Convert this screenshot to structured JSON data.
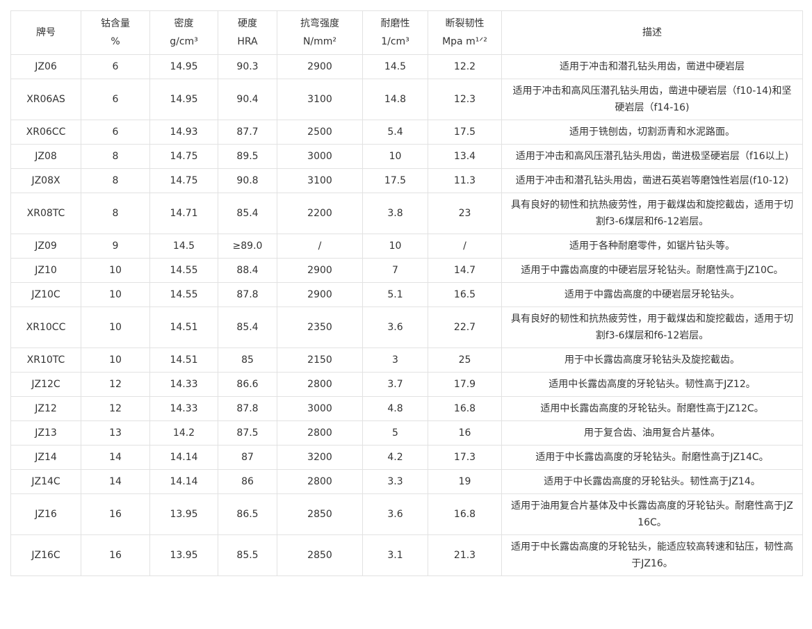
{
  "table": {
    "headers": [
      {
        "line1": "牌号",
        "line2": ""
      },
      {
        "line1": "钴含量",
        "line2": "%"
      },
      {
        "line1": "密度",
        "line2": "g/cm³"
      },
      {
        "line1": "硬度",
        "line2": "HRA"
      },
      {
        "line1": "抗弯强度",
        "line2": "N/mm²"
      },
      {
        "line1": "耐磨性",
        "line2": "1/cm³"
      },
      {
        "line1": "断裂韧性",
        "line2": "Mpa m¹ᐟ²"
      },
      {
        "line1": "描述",
        "line2": ""
      }
    ],
    "rows": [
      [
        "JZ06",
        "6",
        "14.95",
        "90.3",
        "2900",
        "14.5",
        "12.2",
        "适用于冲击和潜孔钻头用齿，凿进中硬岩层"
      ],
      [
        "XR06AS",
        "6",
        "14.95",
        "90.4",
        "3100",
        "14.8",
        "12.3",
        "适用于冲击和高风压潜孔钻头用齿，凿进中硬岩层（f10-14)和坚硬岩层（f14-16)"
      ],
      [
        "XR06CC",
        "6",
        "14.93",
        "87.7",
        "2500",
        "5.4",
        "17.5",
        "适用于铣刨齿，切割沥青和水泥路面。"
      ],
      [
        "JZ08",
        "8",
        "14.75",
        "89.5",
        "3000",
        "10",
        "13.4",
        "适用于冲击和高风压潜孔钻头用齿，凿进极坚硬岩层（f16以上)"
      ],
      [
        "JZ08X",
        "8",
        "14.75",
        "90.8",
        "3100",
        "17.5",
        "11.3",
        "适用于冲击和潜孔钻头用齿，凿进石英岩等磨蚀性岩层(f10-12)"
      ],
      [
        "XR08TC",
        "8",
        "14.71",
        "85.4",
        "2200",
        "3.8",
        "23",
        "具有良好的韧性和抗热疲劳性，用于截煤齿和旋挖截齿，适用于切割f3-6煤层和f6-12岩层。"
      ],
      [
        "JZ09",
        "9",
        "14.5",
        "≥89.0",
        "/",
        "10",
        "/",
        "适用于各种耐磨零件，如锯片钻头等。"
      ],
      [
        "JZ10",
        "10",
        "14.55",
        "88.4",
        "2900",
        "7",
        "14.7",
        "适用于中露齿高度的中硬岩层牙轮钻头。耐磨性高于JZ10C。"
      ],
      [
        "JZ10C",
        "10",
        "14.55",
        "87.8",
        "2900",
        "5.1",
        "16.5",
        "适用于中露齿高度的中硬岩层牙轮钻头。"
      ],
      [
        "XR10CC",
        "10",
        "14.51",
        "85.4",
        "2350",
        "3.6",
        "22.7",
        "具有良好的韧性和抗热疲劳性，用于截煤齿和旋挖截齿，适用于切割f3-6煤层和f6-12岩层。"
      ],
      [
        "XR10TC",
        "10",
        "14.51",
        "85",
        "2150",
        "3",
        "25",
        "用于中长露齿高度牙轮钻头及旋挖截齿。"
      ],
      [
        "JZ12C",
        "12",
        "14.33",
        "86.6",
        "2800",
        "3.7",
        "17.9",
        "适用中长露齿高度的牙轮钻头。韧性高于JZ12。"
      ],
      [
        "JZ12",
        "12",
        "14.33",
        "87.8",
        "3000",
        "4.8",
        "16.8",
        "适用中长露齿高度的牙轮钻头。耐磨性高于JZ12C。"
      ],
      [
        "JZ13",
        "13",
        "14.2",
        "87.5",
        "2800",
        "5",
        "16",
        "用于复合齿、油用复合片基体。"
      ],
      [
        "JZ14",
        "14",
        "14.14",
        "87",
        "3200",
        "4.2",
        "17.3",
        "适用于中长露齿高度的牙轮钻头。耐磨性高于JZ14C。"
      ],
      [
        "JZ14C",
        "14",
        "14.14",
        "86",
        "2800",
        "3.3",
        "19",
        "适用于中长露齿高度的牙轮钻头。韧性高于JZ14。"
      ],
      [
        "JZ16",
        "16",
        "13.95",
        "86.5",
        "2850",
        "3.6",
        "16.8",
        "适用于油用复合片基体及中长露齿高度的牙轮钻头。耐磨性高于JZ16C。"
      ],
      [
        "JZ16C",
        "16",
        "13.95",
        "85.5",
        "2850",
        "3.1",
        "21.3",
        "适用于中长露齿高度的牙轮钻头，能适应较高转速和钻压，韧性高于JZ16。"
      ]
    ]
  }
}
